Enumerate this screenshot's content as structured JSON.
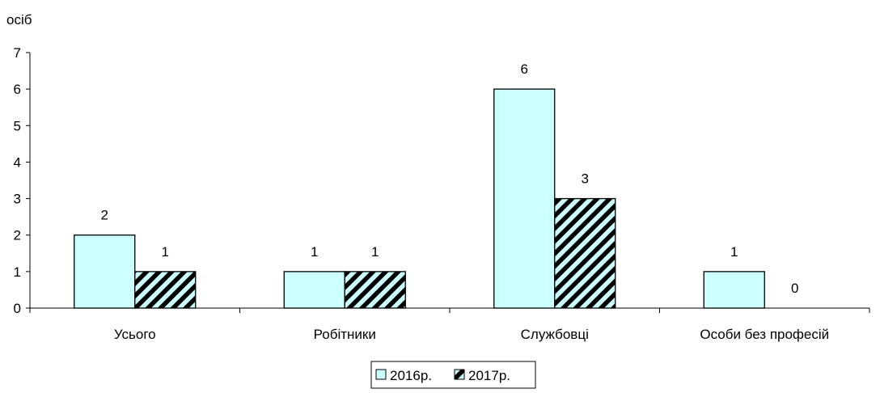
{
  "chart_data": {
    "type": "bar",
    "ylabel": "осіб",
    "categories": [
      "Усього",
      "Робітники",
      "Службовці",
      "Особи без професій"
    ],
    "series": [
      {
        "name": "2016р.",
        "values": [
          2,
          1,
          6,
          1
        ],
        "color": "#ccffff",
        "pattern": "solid"
      },
      {
        "name": "2017р.",
        "values": [
          1,
          1,
          3,
          0
        ],
        "color": "#ccffff",
        "pattern": "diagonal-hatch"
      }
    ],
    "ylim": [
      0,
      7
    ],
    "yticks": [
      0,
      1,
      2,
      3,
      4,
      5,
      6,
      7
    ],
    "grid": false,
    "legend_position": "bottom-center",
    "data_labels": true
  }
}
